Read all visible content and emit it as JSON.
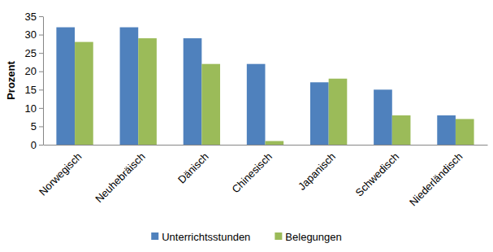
{
  "chart_data": {
    "type": "bar",
    "ylabel": "Prozent",
    "categories": [
      "Norwegisch",
      "Neuhebräisch",
      "Dänisch",
      "Chinesisch",
      "Japanisch",
      "Schwedisch",
      "Niederländisch"
    ],
    "series": [
      {
        "name": "Unterrichtsstunden",
        "color": "#4f81bd",
        "values": [
          32,
          32,
          29,
          22,
          17,
          15,
          8
        ]
      },
      {
        "name": "Belegungen",
        "color": "#9bbb59",
        "values": [
          28,
          29,
          22,
          1,
          18,
          8,
          7
        ]
      }
    ],
    "ylim": [
      0,
      35
    ],
    "yticks": [
      0,
      5,
      10,
      15,
      20,
      25,
      30,
      35
    ],
    "grid": false,
    "legend": "bottom"
  }
}
